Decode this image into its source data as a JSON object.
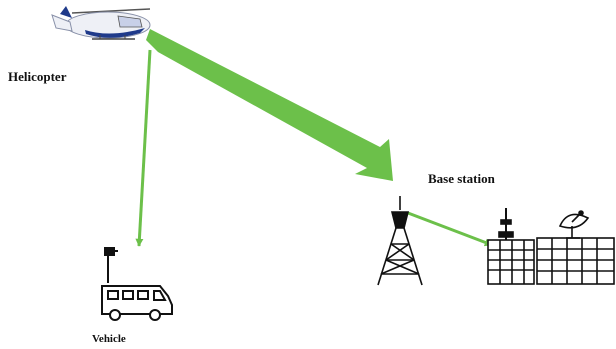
{
  "nodes": {
    "helicopter": {
      "label": "Helicopter",
      "icon": "helicopter-icon"
    },
    "vehicle": {
      "label": "Vehicle",
      "icon": "relay-vehicle-icon"
    },
    "base_station": {
      "label": "Base station",
      "icon": "base-station-icon"
    }
  },
  "links": [
    {
      "from": "helicopter",
      "to": "base_station",
      "style": "thick"
    },
    {
      "from": "helicopter",
      "to": "vehicle",
      "style": "thin"
    },
    {
      "from": "tower",
      "to": "base_station",
      "style": "thin"
    }
  ],
  "colors": {
    "link": "#6cc04a",
    "icon_stroke": "#111111",
    "heli_body": "#eef0f6",
    "heli_accent": "#1f3a8a"
  }
}
